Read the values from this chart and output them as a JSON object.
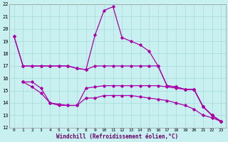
{
  "xlabel": "Windchill (Refroidissement éolien,°C)",
  "bg_color": "#c8f0f0",
  "grid_color": "#a8dada",
  "line_color": "#aa00aa",
  "xlim": [
    -0.5,
    23.5
  ],
  "ylim": [
    12,
    22
  ],
  "xticks": [
    0,
    1,
    2,
    3,
    4,
    5,
    6,
    7,
    8,
    9,
    10,
    11,
    12,
    13,
    14,
    15,
    16,
    17,
    18,
    19,
    20,
    21,
    22,
    23
  ],
  "yticks": [
    12,
    13,
    14,
    15,
    16,
    17,
    18,
    19,
    20,
    21,
    22
  ],
  "line1_x": [
    0,
    1,
    2,
    3,
    4,
    5,
    6,
    7,
    8,
    9,
    10,
    11,
    12,
    13,
    14,
    15,
    16,
    17,
    18,
    19,
    20,
    21,
    22,
    23
  ],
  "line1_y": [
    19.4,
    17.0,
    17.0,
    17.0,
    17.0,
    17.0,
    17.0,
    16.8,
    16.7,
    19.5,
    21.5,
    21.8,
    19.3,
    19.0,
    18.7,
    18.2,
    17.0,
    15.4,
    15.3,
    15.1,
    15.1,
    13.7,
    13.0,
    12.5
  ],
  "line2_x": [
    0,
    1,
    2,
    3,
    4,
    5,
    6,
    7,
    8,
    9,
    10,
    11,
    12,
    13,
    14,
    15,
    16,
    17,
    18,
    19,
    20,
    21,
    22,
    23
  ],
  "line2_y": [
    19.4,
    17.0,
    17.0,
    17.0,
    17.0,
    17.0,
    17.0,
    16.8,
    16.7,
    17.0,
    17.0,
    17.0,
    17.0,
    17.0,
    17.0,
    17.0,
    17.0,
    15.4,
    15.3,
    15.1,
    15.1,
    13.7,
    13.0,
    12.5
  ],
  "line3_x": [
    1,
    2,
    3,
    4,
    5,
    6,
    7,
    8,
    9,
    10,
    11,
    12,
    13,
    14,
    15,
    16,
    17,
    18,
    19,
    20,
    21,
    22,
    23
  ],
  "line3_y": [
    15.7,
    15.7,
    15.2,
    14.0,
    13.9,
    13.8,
    13.8,
    15.2,
    15.3,
    15.4,
    15.4,
    15.4,
    15.4,
    15.4,
    15.4,
    15.4,
    15.3,
    15.2,
    15.1,
    15.1,
    13.7,
    13.0,
    12.5
  ],
  "line4_x": [
    1,
    2,
    3,
    4,
    5,
    6,
    7,
    8,
    9,
    10,
    11,
    12,
    13,
    14,
    15,
    16,
    17,
    18,
    19,
    20,
    21,
    22,
    23
  ],
  "line4_y": [
    15.7,
    15.3,
    14.8,
    14.0,
    13.8,
    13.8,
    13.8,
    14.4,
    14.4,
    14.6,
    14.6,
    14.6,
    14.6,
    14.5,
    14.4,
    14.3,
    14.2,
    14.0,
    13.8,
    13.5,
    13.0,
    12.8,
    12.5
  ],
  "marker": "D",
  "marker_size": 1.8,
  "linewidth": 0.9
}
